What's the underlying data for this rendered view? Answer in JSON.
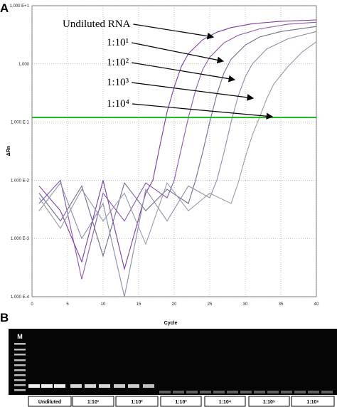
{
  "chart_data": {
    "type": "line",
    "panel": "A",
    "log_y": true,
    "grid": true,
    "xlabel": "Cycle",
    "ylabel": "ΔRn",
    "xlim": [
      0,
      40
    ],
    "xticks": [
      0,
      5,
      10,
      15,
      20,
      25,
      30,
      35,
      40
    ],
    "ylim": [
      0.0001,
      10
    ],
    "yticks": [
      {
        "value": 10,
        "label": "1.000 E+1"
      },
      {
        "value": 1,
        "label": "1.000"
      },
      {
        "value": 0.1,
        "label": "1.000 E-1"
      },
      {
        "value": 0.01,
        "label": "1.000 E-2"
      },
      {
        "value": 0.001,
        "label": "1.000 E-3"
      },
      {
        "value": 0.0001,
        "label": "1.000 E-4"
      }
    ],
    "threshold": 0.12,
    "threshold_color": "#22b022",
    "series": [
      {
        "color": "#7a3a9e",
        "x": [
          1,
          4,
          7,
          10,
          13,
          16,
          17,
          18,
          19,
          20,
          21,
          22,
          24,
          26,
          28,
          31,
          35,
          40
        ],
        "values": [
          0.008,
          0.003,
          0.0004,
          0.01,
          0.0003,
          0.006,
          0.01,
          0.04,
          0.15,
          0.4,
          0.9,
          1.5,
          2.6,
          3.5,
          4.2,
          4.9,
          5.4,
          5.7
        ]
      },
      {
        "color": "#8a5aa8",
        "x": [
          1,
          4,
          7,
          10,
          13,
          16,
          19,
          20,
          21,
          22,
          23,
          24,
          25,
          27,
          29,
          32,
          36,
          40
        ],
        "values": [
          0.004,
          0.01,
          0.0002,
          0.006,
          0.002,
          0.009,
          0.005,
          0.01,
          0.035,
          0.12,
          0.35,
          0.8,
          1.3,
          2.3,
          3.1,
          4.0,
          4.8,
          5.2
        ]
      },
      {
        "color": "#6e6e90",
        "x": [
          1,
          4,
          7,
          10,
          13,
          16,
          19,
          22,
          23,
          24,
          25,
          26,
          27,
          28,
          30,
          32,
          35,
          40
        ],
        "values": [
          0.006,
          0.002,
          0.008,
          0.0005,
          0.009,
          0.003,
          0.007,
          0.004,
          0.01,
          0.03,
          0.1,
          0.3,
          0.7,
          1.2,
          2.1,
          2.9,
          3.6,
          4.4
        ]
      },
      {
        "color": "#8c8ca8",
        "x": [
          1,
          4,
          7,
          10,
          13,
          16,
          19,
          22,
          25,
          26,
          27,
          28,
          29,
          30,
          31,
          33,
          36,
          40
        ],
        "values": [
          0.003,
          0.009,
          0.001,
          0.004,
          0.0001,
          0.007,
          0.002,
          0.008,
          0.005,
          0.01,
          0.03,
          0.1,
          0.28,
          0.6,
          1.0,
          1.8,
          2.7,
          3.6
        ]
      },
      {
        "color": "#9a9aae",
        "x": [
          1,
          4,
          7,
          10,
          13,
          16,
          19,
          22,
          25,
          28,
          29,
          30,
          31,
          32,
          33,
          34,
          36,
          38,
          40
        ],
        "values": [
          0.005,
          0.0015,
          0.007,
          0.002,
          0.006,
          0.0008,
          0.009,
          0.003,
          0.006,
          0.004,
          0.009,
          0.025,
          0.06,
          0.12,
          0.25,
          0.45,
          0.9,
          1.6,
          2.4
        ]
      }
    ],
    "annotations": [
      "Undiluted RNA",
      "1:10¹",
      "1:10²",
      "1:10³",
      "1:10⁴"
    ]
  },
  "gel": {
    "panel": "B",
    "marker": "M",
    "lanes": [
      "Undiluted",
      "1:10¹",
      "1:10²",
      "1:10³",
      "1:10⁴",
      "1:10⁵",
      "1:10⁶"
    ]
  }
}
